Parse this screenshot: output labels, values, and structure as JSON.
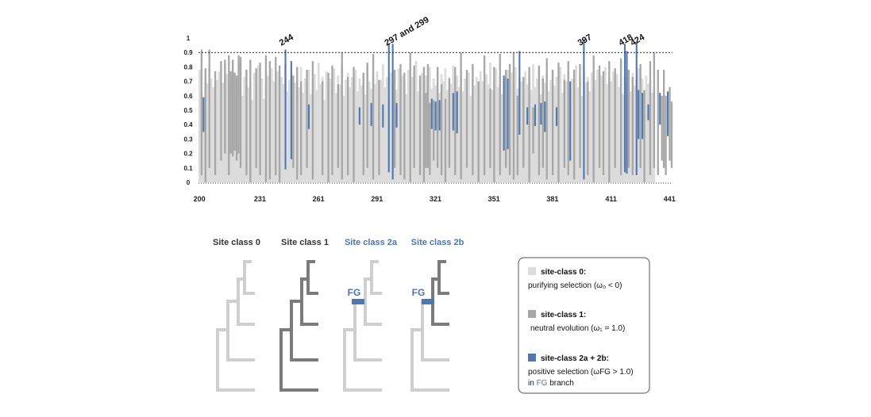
{
  "colors": {
    "purifying": "#dcdcdc",
    "neutral": "#a7a7a7",
    "positive": "#4f77b0",
    "dark_tree": "#7b7b7b",
    "light_tree": "#cfcfcf"
  },
  "chart_data": {
    "type": "bar",
    "title": "",
    "xlabel": "",
    "ylabel": "",
    "xlim": [
      200,
      443
    ],
    "ylim": [
      0,
      1
    ],
    "x_ticks": [
      200,
      231,
      261,
      291,
      321,
      351,
      381,
      411,
      441
    ],
    "y_ticks": [
      "0",
      "0.1",
      "0.2",
      "0.3",
      "0.4",
      "0.5",
      "0.6",
      "0.7",
      "0.8",
      "0.9",
      "1"
    ],
    "threshold": 0.9,
    "legend": [
      "site-class 0",
      "site-class 1",
      "site-class 2a + 2b"
    ],
    "series": [
      {
        "name": "site-class 0",
        "kind": "background",
        "values": [
          0.78,
          0.62,
          0.55,
          0.74,
          0.69,
          0.8,
          0.72,
          0.66,
          0.58,
          0.71,
          0.77,
          0.64,
          0.69,
          0.82,
          0.75,
          0.61,
          0.7,
          0.79,
          0.63,
          0.72,
          0.68,
          0.84,
          0.6,
          0.73,
          0.78,
          0.66,
          0.71,
          0.57,
          0.76,
          0.69,
          0.81,
          0.64,
          0.72,
          0.58,
          0.67,
          0.74,
          0.62,
          0.79,
          0.7,
          0.65,
          0.77,
          0.6,
          0.73,
          0.68,
          0.82,
          0.63,
          0.71,
          0.76,
          0.59,
          0.69,
          0.74,
          0.66,
          0.8,
          0.62,
          0.72,
          0.67,
          0.78,
          0.61,
          0.7,
          0.75,
          0.64,
          0.83,
          0.68,
          0.73,
          0.57,
          0.77,
          0.65,
          0.72,
          0.7,
          0.79,
          0.62,
          0.74,
          0.68,
          0.81,
          0.6,
          0.71,
          0.76,
          0.66,
          0.73,
          0.69,
          0.78,
          0.63,
          0.72,
          0.67,
          0.75,
          0.61,
          0.8,
          0.7,
          0.65,
          0.74,
          0.68,
          0.77,
          0.62,
          0.71,
          0.82,
          0.66,
          0.73,
          0.59,
          0.76,
          0.69,
          0.72,
          0.64,
          0.79,
          0.67,
          0.74,
          0.7,
          0.61,
          0.78,
          0.66,
          0.73,
          0.68,
          0.84,
          0.63,
          0.71,
          0.76,
          0.6,
          0.74,
          0.69,
          0.8,
          0.65,
          0.72,
          0.67,
          0.77,
          0.62,
          0.75,
          0.7,
          0.79,
          0.64,
          0.73,
          0.68,
          0.81,
          0.61,
          0.74,
          0.66,
          0.78,
          0.63,
          0.72,
          0.69,
          0.76,
          0.6,
          0.8,
          0.67,
          0.73,
          0.65,
          0.77,
          0.7,
          0.62,
          0.75,
          0.68,
          0.83,
          0.64,
          0.71,
          0.79,
          0.66,
          0.74,
          0.61,
          0.72,
          0.69,
          0.78,
          0.63,
          0.76,
          0.67,
          0.8,
          0.65,
          0.73,
          0.7,
          0.62,
          0.77,
          0.68,
          0.75,
          0.64,
          0.82,
          0.66,
          0.72,
          0.79,
          0.61,
          0.74,
          0.69,
          0.76,
          0.63,
          0.71,
          0.78,
          0.67,
          0.73,
          0.65,
          0.8,
          0.62,
          0.75,
          0.7,
          0.77,
          0.64,
          0.72,
          0.68,
          0.81,
          0.66,
          0.74,
          0.6,
          0.79,
          0.69,
          0.73,
          0.63,
          0.76,
          0.67,
          0.71,
          0.78,
          0.65,
          0.74,
          0.62,
          0.8,
          0.68,
          0.72,
          0.7,
          0.77,
          0.64,
          0.75,
          0.66,
          0.83,
          0.61,
          0.73,
          0.69,
          0.78,
          0.63,
          0.76,
          0.67,
          0.71,
          0.79,
          0.65,
          0.72,
          0.6,
          0.74,
          0.68,
          0.7,
          0.62,
          0.66
        ]
      },
      {
        "name": "site-class 1",
        "kind": "range",
        "points": [
          {
            "x": 201,
            "lo": 0.05,
            "hi": 0.92
          },
          {
            "x": 203,
            "lo": 0.0,
            "hi": 0.79
          },
          {
            "x": 205,
            "lo": 0.1,
            "hi": 0.92
          },
          {
            "x": 208,
            "lo": 0.05,
            "hi": 0.77
          },
          {
            "x": 211,
            "lo": 0.15,
            "hi": 0.84
          },
          {
            "x": 213,
            "lo": 0.2,
            "hi": 0.85
          },
          {
            "x": 215,
            "lo": 0.05,
            "hi": 0.88
          },
          {
            "x": 216,
            "lo": 0.2,
            "hi": 0.77
          },
          {
            "x": 217,
            "lo": 0.18,
            "hi": 0.85
          },
          {
            "x": 218,
            "lo": 0.22,
            "hi": 0.76
          },
          {
            "x": 219,
            "lo": 0.15,
            "hi": 0.74
          },
          {
            "x": 220,
            "lo": 0.2,
            "hi": 0.88
          },
          {
            "x": 221,
            "lo": 0.1,
            "hi": 0.87
          },
          {
            "x": 224,
            "lo": 0.05,
            "hi": 0.78
          },
          {
            "x": 226,
            "lo": 0.0,
            "hi": 0.85
          },
          {
            "x": 229,
            "lo": 0.1,
            "hi": 0.79
          },
          {
            "x": 231,
            "lo": 0.05,
            "hi": 0.83
          },
          {
            "x": 234,
            "lo": 0.0,
            "hi": 0.88
          },
          {
            "x": 236,
            "lo": 0.02,
            "hi": 0.84
          },
          {
            "x": 239,
            "lo": 0.05,
            "hi": 0.87
          },
          {
            "x": 241,
            "lo": 0.0,
            "hi": 0.81
          },
          {
            "x": 248,
            "lo": 0.1,
            "hi": 0.74
          },
          {
            "x": 250,
            "lo": 0.02,
            "hi": 0.8
          },
          {
            "x": 252,
            "lo": 0.05,
            "hi": 0.7
          },
          {
            "x": 255,
            "lo": 0.1,
            "hi": 0.78
          },
          {
            "x": 258,
            "lo": 0.02,
            "hi": 0.84
          },
          {
            "x": 263,
            "lo": 0.05,
            "hi": 0.7
          },
          {
            "x": 266,
            "lo": 0.0,
            "hi": 0.76
          },
          {
            "x": 268,
            "lo": 0.05,
            "hi": 0.81
          },
          {
            "x": 271,
            "lo": 0.1,
            "hi": 0.68
          },
          {
            "x": 273,
            "lo": 0.02,
            "hi": 0.9
          },
          {
            "x": 276,
            "lo": 0.05,
            "hi": 0.73
          },
          {
            "x": 279,
            "lo": 0.0,
            "hi": 0.8
          },
          {
            "x": 284,
            "lo": 0.05,
            "hi": 0.76
          },
          {
            "x": 286,
            "lo": 0.1,
            "hi": 0.83
          },
          {
            "x": 289,
            "lo": 0.02,
            "hi": 0.89
          },
          {
            "x": 292,
            "lo": 0.05,
            "hi": 0.71
          },
          {
            "x": 300,
            "lo": 0.1,
            "hi": 0.78
          },
          {
            "x": 303,
            "lo": 0.05,
            "hi": 0.82
          },
          {
            "x": 305,
            "lo": 0.02,
            "hi": 0.76
          },
          {
            "x": 308,
            "lo": 0.0,
            "hi": 0.9
          },
          {
            "x": 310,
            "lo": 0.1,
            "hi": 0.81
          },
          {
            "x": 313,
            "lo": 0.05,
            "hi": 0.74
          },
          {
            "x": 315,
            "lo": 0.0,
            "hi": 0.8
          },
          {
            "x": 316,
            "lo": 0.1,
            "hi": 0.62
          },
          {
            "x": 317,
            "lo": 0.1,
            "hi": 0.82
          },
          {
            "x": 318,
            "lo": 0.05,
            "hi": 0.55
          },
          {
            "x": 320,
            "lo": 0.15,
            "hi": 0.57
          },
          {
            "x": 322,
            "lo": 0.1,
            "hi": 0.8
          },
          {
            "x": 324,
            "lo": 0.05,
            "hi": 0.68
          },
          {
            "x": 326,
            "lo": 0.0,
            "hi": 0.58
          },
          {
            "x": 328,
            "lo": 0.1,
            "hi": 0.72
          },
          {
            "x": 331,
            "lo": 0.05,
            "hi": 0.8
          },
          {
            "x": 334,
            "lo": 0.02,
            "hi": 0.9
          },
          {
            "x": 337,
            "lo": 0.1,
            "hi": 0.78
          },
          {
            "x": 340,
            "lo": 0.05,
            "hi": 0.82
          },
          {
            "x": 343,
            "lo": 0.0,
            "hi": 0.7
          },
          {
            "x": 346,
            "lo": 0.05,
            "hi": 0.88
          },
          {
            "x": 349,
            "lo": 0.1,
            "hi": 0.65
          },
          {
            "x": 351,
            "lo": 0.0,
            "hi": 0.8
          },
          {
            "x": 354,
            "lo": 0.05,
            "hi": 0.89
          },
          {
            "x": 357,
            "lo": 0.1,
            "hi": 0.78
          },
          {
            "x": 359,
            "lo": 0.05,
            "hi": 0.82
          },
          {
            "x": 361,
            "lo": 0.02,
            "hi": 0.9
          },
          {
            "x": 363,
            "lo": 0.05,
            "hi": 0.6
          },
          {
            "x": 366,
            "lo": 0.1,
            "hi": 0.73
          },
          {
            "x": 369,
            "lo": 0.0,
            "hi": 0.8
          },
          {
            "x": 371,
            "lo": 0.2,
            "hi": 0.52
          },
          {
            "x": 374,
            "lo": 0.05,
            "hi": 0.81
          },
          {
            "x": 376,
            "lo": 0.1,
            "hi": 0.72
          },
          {
            "x": 378,
            "lo": 0.02,
            "hi": 0.86
          },
          {
            "x": 381,
            "lo": 0.05,
            "hi": 0.78
          },
          {
            "x": 384,
            "lo": 0.0,
            "hi": 0.83
          },
          {
            "x": 387,
            "lo": 0.1,
            "hi": 0.71
          },
          {
            "x": 389,
            "lo": 0.05,
            "hi": 0.84
          },
          {
            "x": 392,
            "lo": 0.02,
            "hi": 0.78
          },
          {
            "x": 395,
            "lo": 0.1,
            "hi": 0.82
          },
          {
            "x": 399,
            "lo": 0.05,
            "hi": 0.7
          },
          {
            "x": 402,
            "lo": 0.0,
            "hi": 0.88
          },
          {
            "x": 405,
            "lo": 0.1,
            "hi": 0.81
          },
          {
            "x": 407,
            "lo": 0.05,
            "hi": 0.77
          },
          {
            "x": 410,
            "lo": 0.0,
            "hi": 0.84
          },
          {
            "x": 413,
            "lo": 0.1,
            "hi": 0.79
          },
          {
            "x": 416,
            "lo": 0.05,
            "hi": 0.86
          },
          {
            "x": 420,
            "lo": 0.1,
            "hi": 0.78
          },
          {
            "x": 422,
            "lo": 0.05,
            "hi": 0.73
          },
          {
            "x": 426,
            "lo": 0.1,
            "hi": 0.82
          },
          {
            "x": 428,
            "lo": 0.0,
            "hi": 0.64
          },
          {
            "x": 431,
            "lo": 0.05,
            "hi": 0.84
          },
          {
            "x": 433,
            "lo": 0.1,
            "hi": 0.9
          },
          {
            "x": 435,
            "lo": 0.05,
            "hi": 0.78
          },
          {
            "x": 437,
            "lo": 0.15,
            "hi": 0.6
          },
          {
            "x": 438,
            "lo": 0.1,
            "hi": 0.78
          },
          {
            "x": 439,
            "lo": 0.05,
            "hi": 0.6
          },
          {
            "x": 441,
            "lo": 0.15,
            "hi": 0.66
          },
          {
            "x": 442,
            "lo": 0.1,
            "hi": 0.56
          }
        ]
      },
      {
        "name": "site-class 2a + 2b",
        "kind": "range",
        "points": [
          {
            "x": 202,
            "lo": 0.35,
            "hi": 0.59
          },
          {
            "x": 244,
            "lo": 0.09,
            "hi": 0.92
          },
          {
            "x": 247,
            "lo": 0.16,
            "hi": 0.84
          },
          {
            "x": 256,
            "lo": 0.37,
            "hi": 0.54
          },
          {
            "x": 282,
            "lo": 0.4,
            "hi": 0.52
          },
          {
            "x": 288,
            "lo": 0.39,
            "hi": 0.55
          },
          {
            "x": 294,
            "lo": 0.38,
            "hi": 0.54
          },
          {
            "x": 297,
            "lo": 0.07,
            "hi": 0.96
          },
          {
            "x": 299,
            "lo": 0.02,
            "hi": 0.96
          },
          {
            "x": 301,
            "lo": 0.38,
            "hi": 0.55
          },
          {
            "x": 319,
            "lo": 0.37,
            "hi": 0.58
          },
          {
            "x": 321,
            "lo": 0.36,
            "hi": 0.56
          },
          {
            "x": 323,
            "lo": 0.36,
            "hi": 0.57
          },
          {
            "x": 330,
            "lo": 0.36,
            "hi": 0.62
          },
          {
            "x": 332,
            "lo": 0.34,
            "hi": 0.63
          },
          {
            "x": 356,
            "lo": 0.22,
            "hi": 0.74
          },
          {
            "x": 358,
            "lo": 0.23,
            "hi": 0.72
          },
          {
            "x": 364,
            "lo": 0.33,
            "hi": 0.91
          },
          {
            "x": 368,
            "lo": 0.4,
            "hi": 0.52
          },
          {
            "x": 372,
            "lo": 0.39,
            "hi": 0.54
          },
          {
            "x": 375,
            "lo": 0.4,
            "hi": 0.55
          },
          {
            "x": 377,
            "lo": 0.35,
            "hi": 0.56
          },
          {
            "x": 383,
            "lo": 0.39,
            "hi": 0.52
          },
          {
            "x": 390,
            "lo": 0.15,
            "hi": 0.7
          },
          {
            "x": 397,
            "lo": 0.02,
            "hi": 0.99
          },
          {
            "x": 418,
            "lo": 0.07,
            "hi": 0.96
          },
          {
            "x": 419,
            "lo": 0.06,
            "hi": 0.91
          },
          {
            "x": 424,
            "lo": 0.05,
            "hi": 0.97
          },
          {
            "x": 425,
            "lo": 0.3,
            "hi": 0.64
          },
          {
            "x": 427,
            "lo": 0.3,
            "hi": 0.62
          },
          {
            "x": 430,
            "lo": 0.43,
            "hi": 0.54
          },
          {
            "x": 436,
            "lo": 0.4,
            "hi": 0.62
          },
          {
            "x": 440,
            "lo": 0.32,
            "hi": 0.63
          }
        ]
      }
    ],
    "annotations": [
      {
        "text": "244",
        "x": 244
      },
      {
        "text": "297 and 299",
        "x": 298
      },
      {
        "text": "397",
        "x": 397
      },
      {
        "text": "418",
        "x": 418
      },
      {
        "text": "424",
        "x": 424
      }
    ]
  },
  "site_classes": [
    {
      "title": "Site class 0",
      "title_color": "#333333",
      "has_fg": false
    },
    {
      "title": "Site class 1",
      "title_color": "#333333",
      "has_fg": false
    },
    {
      "title": "Site class 2a",
      "title_color": "#4a76b0",
      "has_fg": true
    },
    {
      "title": "Site class 2b",
      "title_color": "#4a76b0",
      "has_fg": true
    }
  ],
  "fg_label": "FG",
  "legend": {
    "items": [
      {
        "title": "site-class 0:",
        "text": "purifying selection (ω₀ < 0)"
      },
      {
        "title": "site-class 1:",
        "text": "neutral evolution (ω₁ = 1.0)"
      },
      {
        "title": "site-class 2a + 2b:",
        "text": "positive selection (ωFG > 1.0)",
        "text2_pre": "in ",
        "text2_fg": "FG",
        "text2_post": " branch"
      }
    ]
  }
}
